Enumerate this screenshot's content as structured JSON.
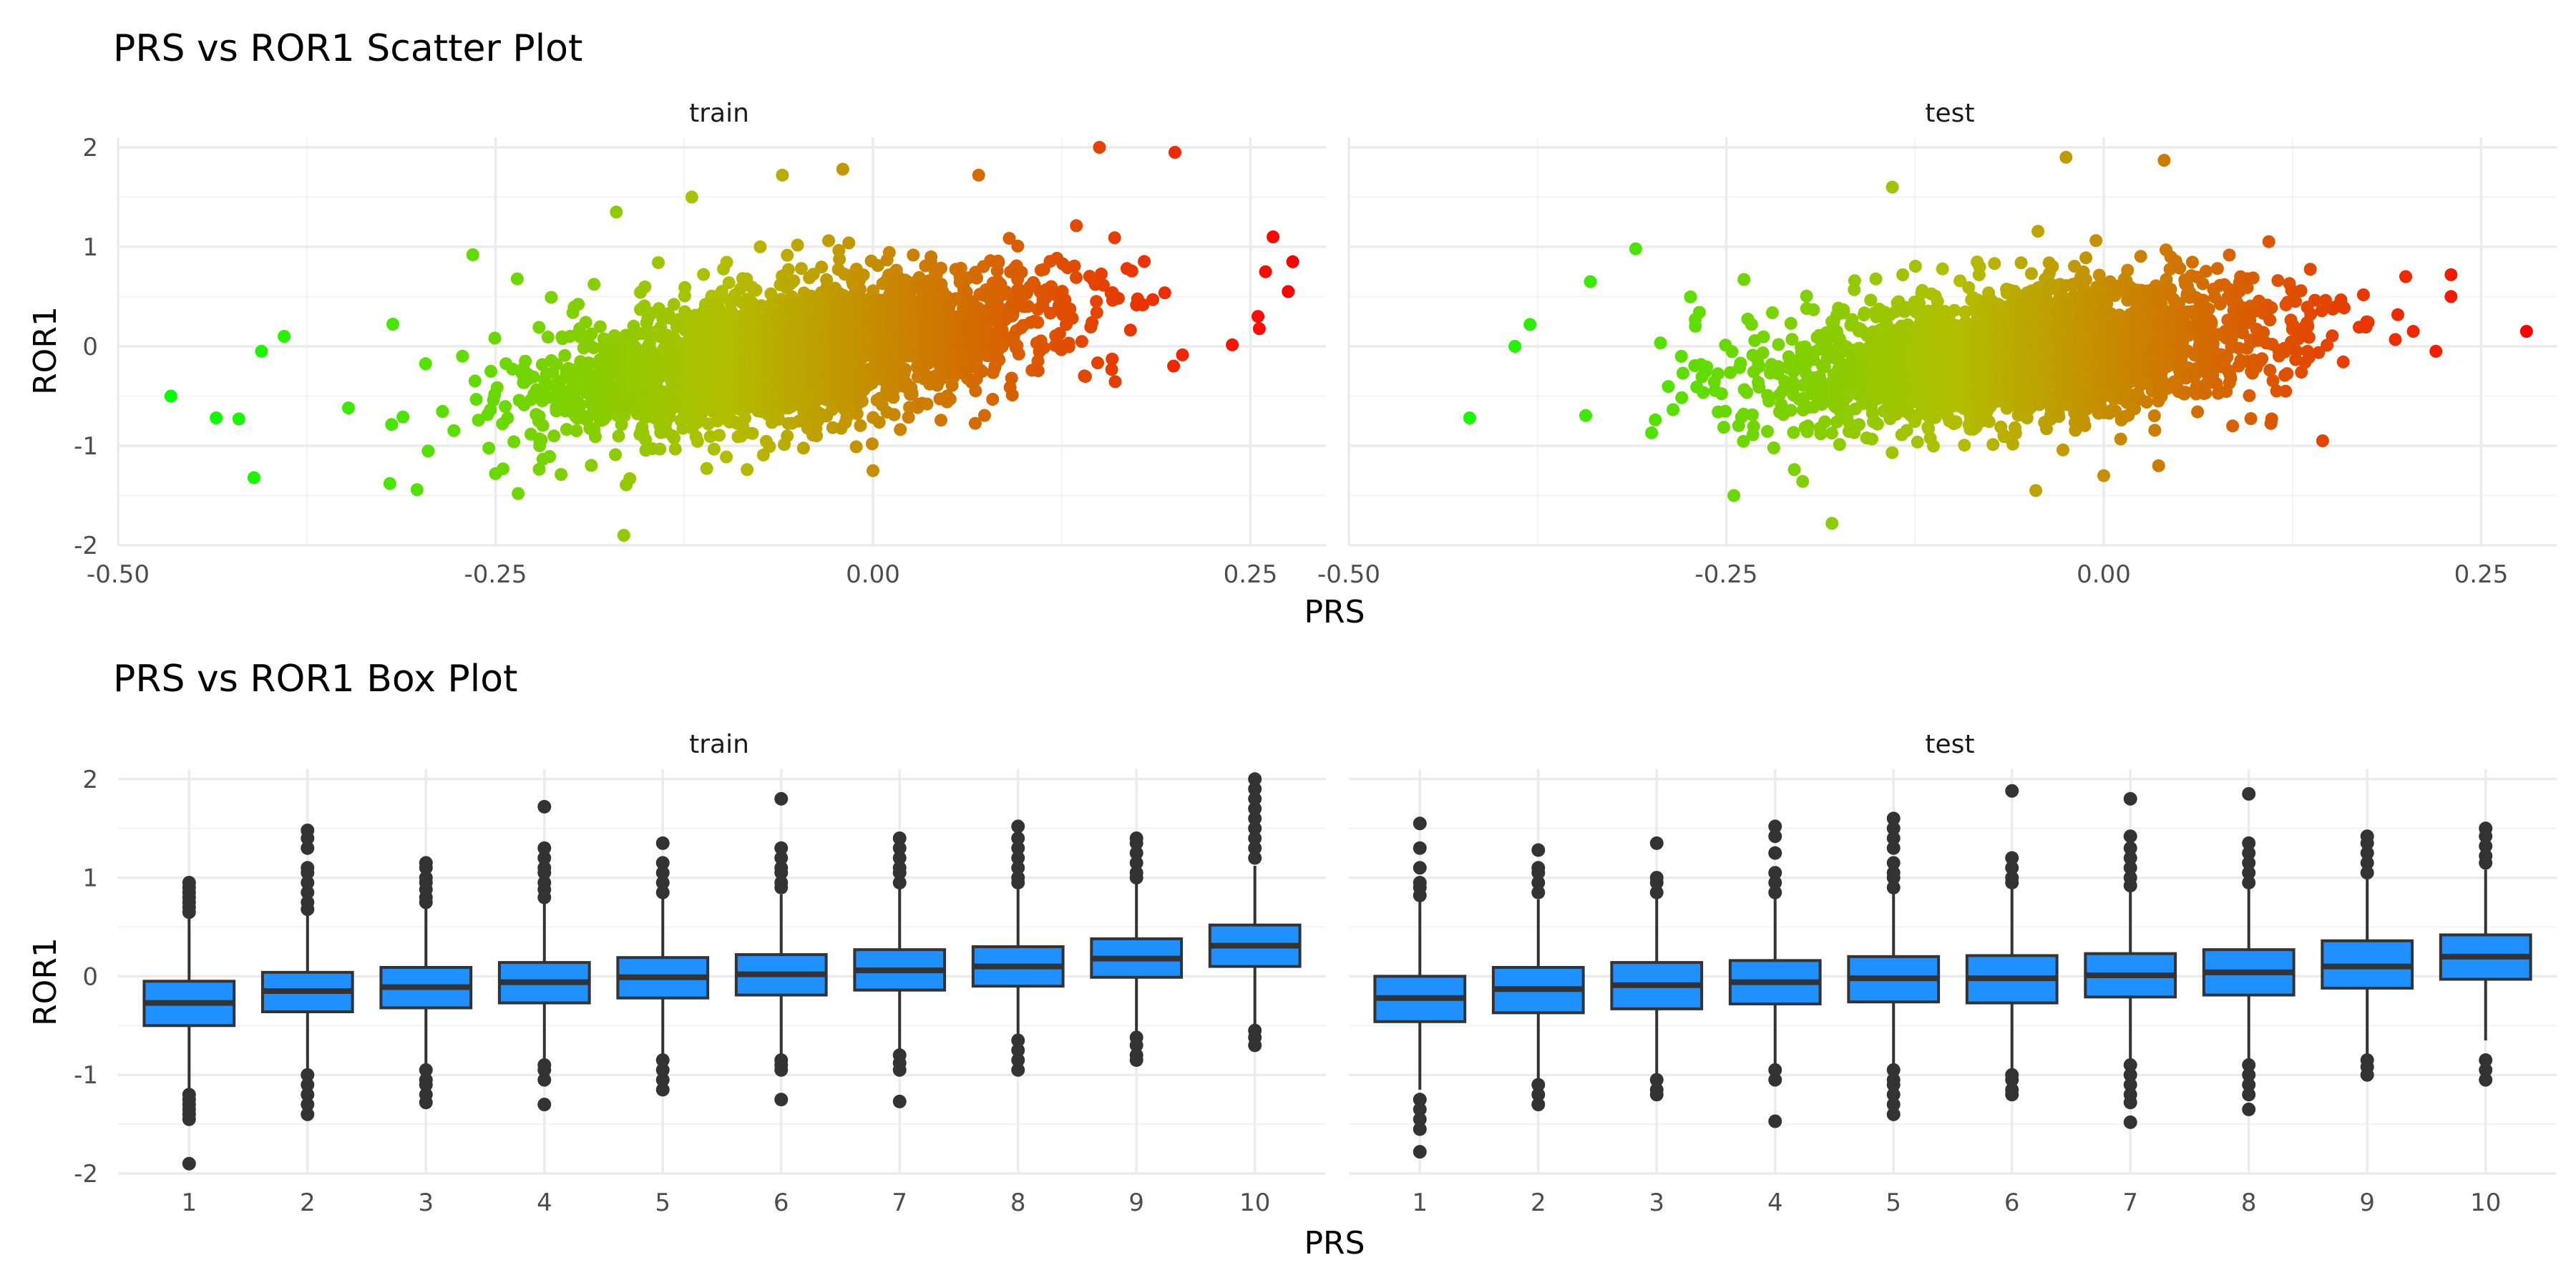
{
  "colors": {
    "low": "#00ff00",
    "mid": "#b2be00",
    "high": "#ff0000",
    "box_fill": "#1e90ff",
    "box_line": "#333333",
    "outlier": "#333333"
  },
  "chart_data": [
    {
      "type": "scatter",
      "title": "PRS vs ROR1 Scatter Plot",
      "xlabel": "PRS",
      "ylabel": "ROR1",
      "xlim": [
        -0.5,
        0.3
      ],
      "ylim": [
        -2,
        2.1
      ],
      "x_ticks": [
        -0.5,
        -0.25,
        0.0,
        0.25
      ],
      "x_tick_labels": [
        "-0.50",
        "-0.25",
        "0.00",
        "0.25"
      ],
      "y_ticks": [
        -2,
        -1,
        0,
        1,
        2
      ],
      "y_tick_labels": [
        "-2",
        "-1",
        "0",
        "1",
        "2"
      ],
      "color_scale": {
        "variable": "PRS",
        "domain": [
          -0.47,
          0.28
        ],
        "colors": [
          "#00ff00",
          "#ff0000"
        ]
      },
      "panels": [
        {
          "name": "train",
          "cloud": {
            "x_mean": -0.05,
            "x_sd": 0.085,
            "y_mean": -0.06,
            "slope": 2.3,
            "y_sd": 0.34,
            "x_range": [
              -0.41,
              0.26
            ],
            "n": 2600
          },
          "points": [
            {
              "x": -0.465,
              "y": -0.5
            },
            {
              "x": -0.435,
              "y": -0.72
            },
            {
              "x": -0.42,
              "y": -0.73
            },
            {
              "x": -0.41,
              "y": -1.32
            },
            {
              "x": -0.405,
              "y": -0.05
            },
            {
              "x": -0.39,
              "y": 0.1
            },
            {
              "x": -0.32,
              "y": -1.38
            },
            {
              "x": -0.265,
              "y": 0.92
            },
            {
              "x": -0.25,
              "y": -1.28
            },
            {
              "x": -0.235,
              "y": -1.48
            },
            {
              "x": -0.17,
              "y": 1.35
            },
            {
              "x": -0.165,
              "y": -1.9
            },
            {
              "x": -0.12,
              "y": 1.5
            },
            {
              "x": -0.06,
              "y": 1.72
            },
            {
              "x": -0.02,
              "y": 1.78
            },
            {
              "x": 0.0,
              "y": -1.25
            },
            {
              "x": 0.07,
              "y": 1.72
            },
            {
              "x": 0.15,
              "y": 2.0
            },
            {
              "x": 0.2,
              "y": 1.95
            },
            {
              "x": 0.255,
              "y": 0.3
            },
            {
              "x": 0.265,
              "y": 1.1
            },
            {
              "x": 0.275,
              "y": 0.55
            },
            {
              "x": 0.278,
              "y": 0.85
            },
            {
              "x": 0.26,
              "y": 0.75
            }
          ]
        },
        {
          "name": "test",
          "cloud": {
            "x_mean": -0.05,
            "x_sd": 0.085,
            "y_mean": -0.08,
            "slope": 1.2,
            "y_sd": 0.34,
            "x_range": [
              -0.39,
              0.2
            ],
            "n": 2400
          },
          "points": [
            {
              "x": -0.42,
              "y": -0.72
            },
            {
              "x": -0.39,
              "y": 0.0
            },
            {
              "x": -0.38,
              "y": 0.22
            },
            {
              "x": -0.34,
              "y": 0.65
            },
            {
              "x": -0.31,
              "y": 0.98
            },
            {
              "x": -0.245,
              "y": -1.5
            },
            {
              "x": -0.18,
              "y": -1.78
            },
            {
              "x": -0.14,
              "y": 1.6
            },
            {
              "x": -0.045,
              "y": -1.45
            },
            {
              "x": -0.025,
              "y": 1.9
            },
            {
              "x": 0.0,
              "y": -1.3
            },
            {
              "x": 0.04,
              "y": 1.87
            },
            {
              "x": 0.145,
              "y": -0.95
            },
            {
              "x": 0.2,
              "y": 0.7
            },
            {
              "x": 0.205,
              "y": 0.15
            },
            {
              "x": 0.22,
              "y": -0.05
            },
            {
              "x": 0.23,
              "y": 0.5
            },
            {
              "x": 0.23,
              "y": 0.72
            },
            {
              "x": 0.28,
              "y": 0.15
            }
          ]
        }
      ]
    },
    {
      "type": "box",
      "title": "PRS vs ROR1 Box Plot",
      "xlabel": "PRS",
      "ylabel": "ROR1",
      "categories": [
        "1",
        "2",
        "3",
        "4",
        "5",
        "6",
        "7",
        "8",
        "9",
        "10"
      ],
      "ylim": [
        -2,
        2.1
      ],
      "y_ticks": [
        -2,
        -1,
        0,
        1,
        2
      ],
      "y_tick_labels": [
        "-2",
        "-1",
        "0",
        "1",
        "2"
      ],
      "panels": [
        {
          "name": "train",
          "boxes": [
            {
              "q1": -0.5,
              "median": -0.27,
              "q3": -0.05,
              "low": -1.15,
              "high": 0.62,
              "outliers": [
                0.65,
                0.7,
                0.75,
                0.8,
                0.85,
                0.9,
                0.95,
                -1.2,
                -1.25,
                -1.3,
                -1.35,
                -1.4,
                -1.45,
                -1.9
              ]
            },
            {
              "q1": -0.36,
              "median": -0.15,
              "q3": 0.04,
              "low": -0.95,
              "high": 0.64,
              "outliers": [
                0.68,
                0.75,
                0.85,
                0.95,
                1.05,
                1.1,
                1.3,
                1.4,
                1.48,
                -1.0,
                -1.1,
                -1.2,
                -1.3,
                -1.4
              ]
            },
            {
              "q1": -0.32,
              "median": -0.11,
              "q3": 0.09,
              "low": -0.92,
              "high": 0.7,
              "outliers": [
                0.75,
                0.8,
                0.88,
                0.95,
                1.0,
                1.1,
                1.15,
                -0.95,
                -1.05,
                -1.1,
                -1.2,
                -1.28
              ]
            },
            {
              "q1": -0.27,
              "median": -0.06,
              "q3": 0.14,
              "low": -0.88,
              "high": 0.74,
              "outliers": [
                0.8,
                0.88,
                0.95,
                1.05,
                1.1,
                1.2,
                1.3,
                1.72,
                -0.9,
                -0.95,
                -1.05,
                -1.3
              ]
            },
            {
              "q1": -0.22,
              "median": -0.01,
              "q3": 0.19,
              "low": -0.82,
              "high": 0.8,
              "outliers": [
                0.85,
                0.95,
                1.05,
                1.15,
                1.35,
                -0.85,
                -0.95,
                -1.05,
                -1.15
              ]
            },
            {
              "q1": -0.19,
              "median": 0.02,
              "q3": 0.22,
              "low": -0.8,
              "high": 0.83,
              "outliers": [
                0.9,
                0.95,
                1.05,
                1.1,
                1.2,
                1.3,
                1.8,
                -0.85,
                -0.9,
                -0.95,
                -1.25
              ]
            },
            {
              "q1": -0.14,
              "median": 0.06,
              "q3": 0.27,
              "low": -0.76,
              "high": 0.9,
              "outliers": [
                0.95,
                1.05,
                1.1,
                1.2,
                1.3,
                1.4,
                -0.8,
                -0.88,
                -0.95,
                -1.27
              ]
            },
            {
              "q1": -0.1,
              "median": 0.1,
              "q3": 0.3,
              "low": -0.62,
              "high": 0.9,
              "outliers": [
                0.95,
                1.0,
                1.1,
                1.2,
                1.3,
                1.4,
                1.52,
                -0.65,
                -0.75,
                -0.85,
                -0.95
              ]
            },
            {
              "q1": -0.01,
              "median": 0.18,
              "q3": 0.38,
              "low": -0.58,
              "high": 0.95,
              "outliers": [
                1.0,
                1.05,
                1.15,
                1.25,
                1.35,
                1.4,
                -0.62,
                -0.7,
                -0.8,
                -0.85
              ]
            },
            {
              "q1": 0.1,
              "median": 0.31,
              "q3": 0.52,
              "low": -0.5,
              "high": 1.12,
              "outliers": [
                1.2,
                1.3,
                1.4,
                1.5,
                1.6,
                1.7,
                1.8,
                1.9,
                2.0,
                -0.55,
                -0.62,
                -0.7
              ]
            }
          ]
        },
        {
          "name": "test",
          "boxes": [
            {
              "q1": -0.46,
              "median": -0.22,
              "q3": 0.0,
              "low": -1.15,
              "high": 0.78,
              "outliers": [
                0.82,
                0.9,
                0.95,
                1.1,
                1.3,
                1.55,
                -1.25,
                -1.35,
                -1.45,
                -1.55,
                -1.78
              ]
            },
            {
              "q1": -0.37,
              "median": -0.13,
              "q3": 0.09,
              "low": -1.05,
              "high": 0.78,
              "outliers": [
                0.85,
                0.95,
                1.05,
                1.1,
                1.28,
                -1.1,
                -1.2,
                -1.3
              ]
            },
            {
              "q1": -0.33,
              "median": -0.09,
              "q3": 0.14,
              "low": -1.0,
              "high": 0.8,
              "outliers": [
                0.85,
                0.95,
                1.0,
                1.35,
                -1.05,
                -1.15,
                -1.2
              ]
            },
            {
              "q1": -0.28,
              "median": -0.06,
              "q3": 0.16,
              "low": -0.92,
              "high": 0.82,
              "outliers": [
                0.85,
                0.95,
                1.05,
                1.25,
                1.42,
                1.52,
                -0.95,
                -1.05,
                -1.47
              ]
            },
            {
              "q1": -0.26,
              "median": -0.02,
              "q3": 0.2,
              "low": -0.92,
              "high": 0.86,
              "outliers": [
                0.9,
                1.0,
                1.05,
                1.15,
                1.3,
                1.4,
                1.5,
                1.6,
                -0.95,
                -1.05,
                -1.1,
                -1.2,
                -1.3,
                -1.4
              ]
            },
            {
              "q1": -0.27,
              "median": -0.02,
              "q3": 0.21,
              "low": -0.95,
              "high": 0.92,
              "outliers": [
                0.95,
                1.0,
                1.1,
                1.2,
                1.88,
                -1.0,
                -1.05,
                -1.15,
                -1.2
              ]
            },
            {
              "q1": -0.21,
              "median": 0.01,
              "q3": 0.23,
              "low": -0.85,
              "high": 0.88,
              "outliers": [
                0.92,
                1.0,
                1.1,
                1.2,
                1.3,
                1.42,
                1.8,
                -0.9,
                -1.0,
                -1.1,
                -1.2,
                -1.28,
                -1.48
              ]
            },
            {
              "q1": -0.19,
              "median": 0.04,
              "q3": 0.27,
              "low": -0.85,
              "high": 0.92,
              "outliers": [
                0.95,
                1.05,
                1.15,
                1.25,
                1.35,
                1.85,
                -0.9,
                -1.0,
                -1.1,
                -1.2,
                -1.35
              ]
            },
            {
              "q1": -0.12,
              "median": 0.1,
              "q3": 0.36,
              "low": -0.82,
              "high": 1.0,
              "outliers": [
                1.05,
                1.15,
                1.25,
                1.35,
                1.42,
                -0.85,
                -0.92,
                -1.0
              ]
            },
            {
              "q1": -0.03,
              "median": 0.2,
              "q3": 0.42,
              "low": -0.65,
              "high": 1.08,
              "outliers": [
                1.15,
                1.22,
                1.32,
                1.42,
                1.5,
                -0.85,
                -0.95,
                -1.05
              ]
            }
          ]
        }
      ]
    }
  ]
}
